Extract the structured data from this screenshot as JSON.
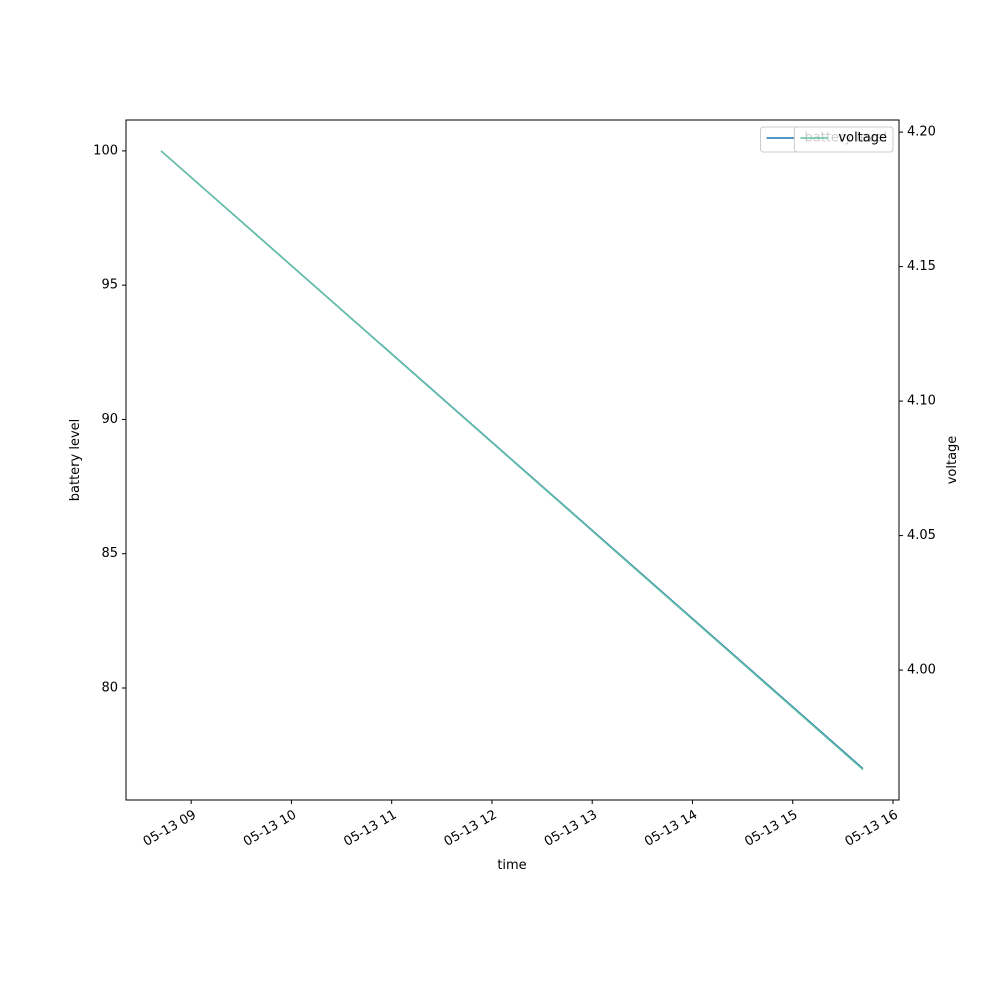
{
  "chart_data": {
    "type": "line",
    "x_label": "time",
    "y_label": "battery level",
    "y2_label": "voltage",
    "x": [
      8.7,
      15.7
    ],
    "series": [
      {
        "name": "battery level",
        "color": "#1f77b4",
        "values": [
          100,
          77
        ]
      },
      {
        "name": "voltage",
        "color": "#66c2a5",
        "axis": "y2",
        "values": [
          4.193,
          3.963
        ]
      }
    ],
    "xlim": [
      8.35,
      16.06
    ],
    "xticks": [
      {
        "value": 9,
        "label": "05-13 09"
      },
      {
        "value": 10,
        "label": "05-13 10"
      },
      {
        "value": 11,
        "label": "05-13 11"
      },
      {
        "value": 12,
        "label": "05-13 12"
      },
      {
        "value": 13,
        "label": "05-13 13"
      },
      {
        "value": 14,
        "label": "05-13 14"
      },
      {
        "value": 15,
        "label": "05-13 15"
      },
      {
        "value": 16,
        "label": "05-13 16"
      }
    ],
    "ylim": [
      75.83,
      101.15
    ],
    "yticks": [
      80,
      85,
      90,
      95,
      100
    ],
    "y2lim": [
      3.9517,
      4.2045
    ],
    "y2ticks": [
      {
        "value": 4.0,
        "label": "4.00"
      },
      {
        "value": 4.05,
        "label": "4.05"
      },
      {
        "value": 4.1,
        "label": "4.10"
      },
      {
        "value": 4.15,
        "label": "4.15"
      },
      {
        "value": 4.2,
        "label": "4.20"
      }
    ],
    "legend": "upper right",
    "grid": false
  }
}
